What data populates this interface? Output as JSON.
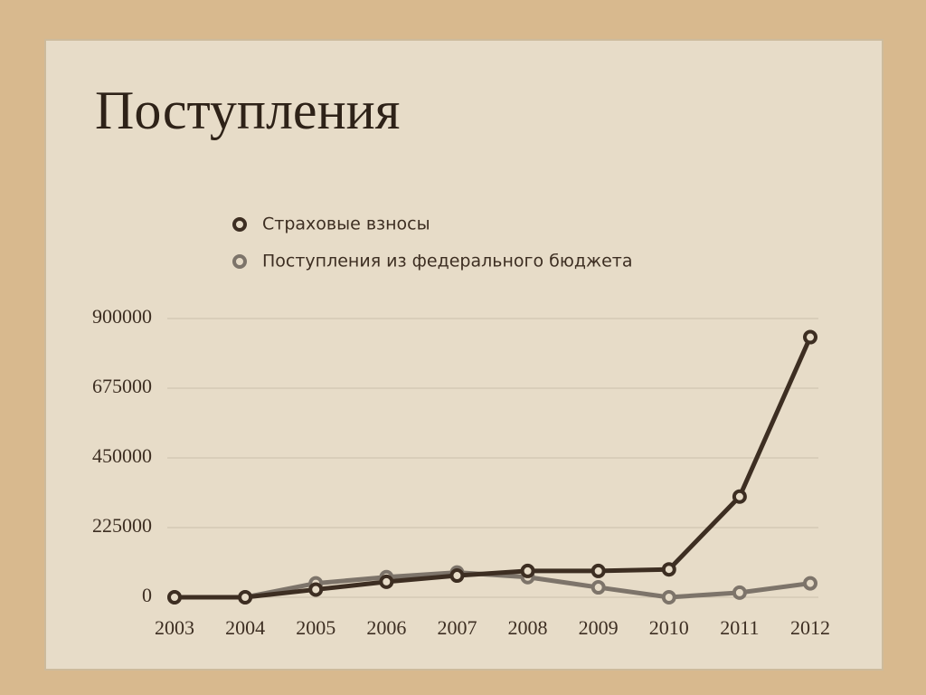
{
  "chart_data": {
    "type": "line",
    "title": "Поступления",
    "categories": [
      "2003",
      "2004",
      "2005",
      "2006",
      "2007",
      "2008",
      "2009",
      "2010",
      "2011",
      "2012"
    ],
    "series": [
      {
        "name": "Страховые взносы",
        "color": "#3d2e22",
        "values": [
          0,
          0,
          25000,
          50000,
          70000,
          85000,
          85000,
          90000,
          325000,
          840000
        ]
      },
      {
        "name": "Поступления из федерального бюджета",
        "color": "#7d746a",
        "values": [
          0,
          0,
          45000,
          65000,
          80000,
          65000,
          32000,
          0,
          15000,
          45000
        ]
      }
    ],
    "ylim": [
      0,
      900000
    ],
    "yticks": [
      0,
      225000,
      450000,
      675000,
      900000
    ],
    "grid": true
  }
}
